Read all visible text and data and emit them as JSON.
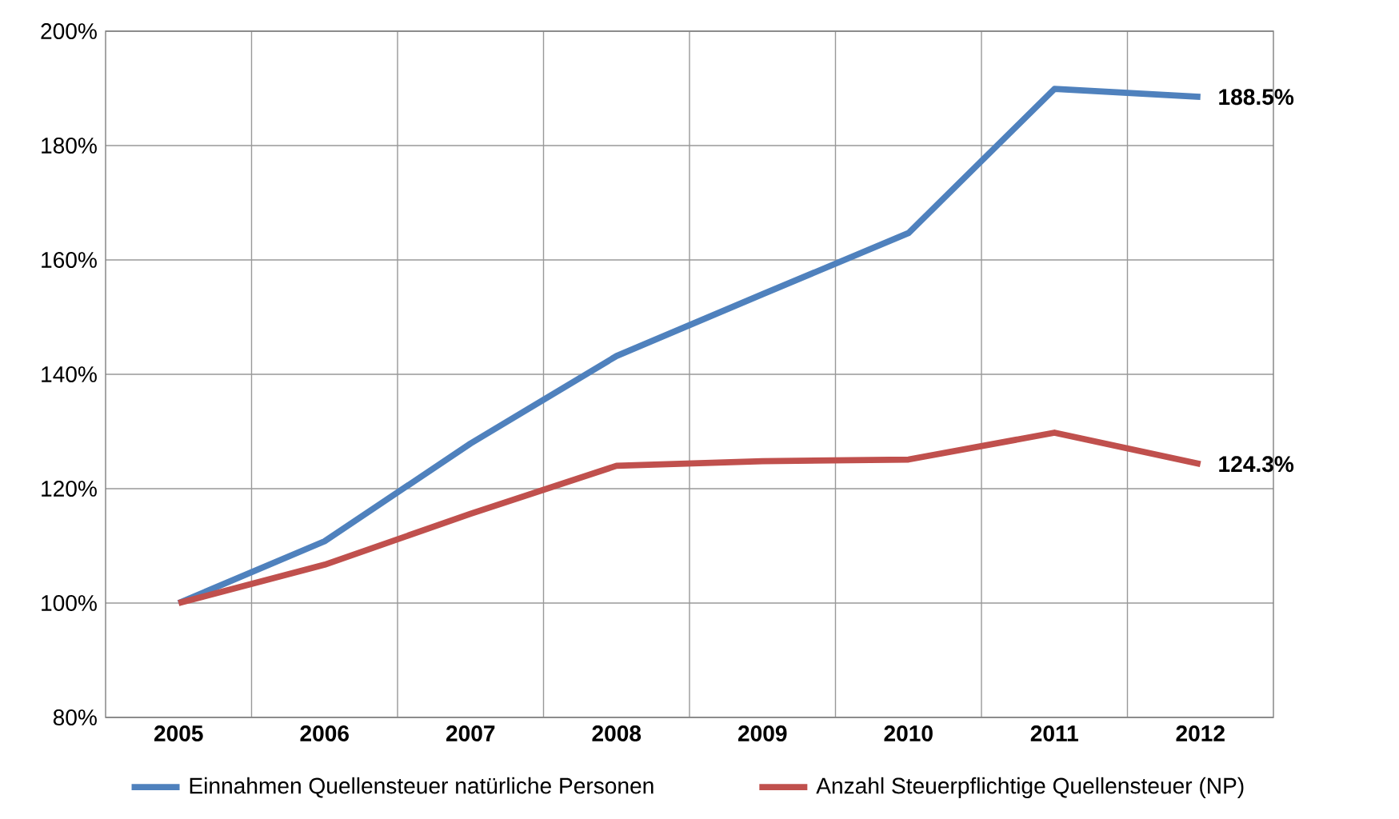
{
  "chart_data": {
    "type": "line",
    "categories": [
      "2005",
      "2006",
      "2007",
      "2008",
      "2009",
      "2010",
      "2011",
      "2012"
    ],
    "series": [
      {
        "name": "Einnahmen Quellensteuer natürliche Personen",
        "color": "#4f81bd",
        "values": [
          100,
          110.8,
          127.9,
          143.2,
          154.0,
          164.7,
          189.9,
          188.5
        ],
        "value_labels": [
          null,
          null,
          null,
          null,
          null,
          null,
          null,
          "188.5%"
        ]
      },
      {
        "name": "Anzahl Steuerpflichtige Quellensteuer (NP)",
        "color": "#c0504d",
        "values": [
          100,
          106.7,
          115.6,
          124.0,
          124.8,
          125.1,
          129.8,
          124.3
        ],
        "value_labels": [
          null,
          null,
          null,
          null,
          null,
          null,
          null,
          "124.3%"
        ]
      }
    ],
    "ylim": [
      80,
      200
    ],
    "yticks": [
      {
        "value": 80,
        "label": "80%"
      },
      {
        "value": 100,
        "label": "100%"
      },
      {
        "value": 120,
        "label": "120%"
      },
      {
        "value": 140,
        "label": "140%"
      },
      {
        "value": 160,
        "label": "160%"
      },
      {
        "value": 180,
        "label": "180%"
      },
      {
        "value": 200,
        "label": "200%"
      }
    ],
    "grid": true,
    "legend": "bottom",
    "marker": "none",
    "line_style": "solid"
  }
}
